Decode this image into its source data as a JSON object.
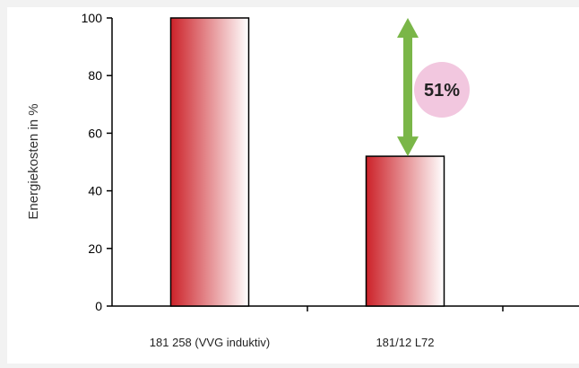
{
  "chart_data": {
    "type": "bar",
    "title": "",
    "xlabel": "",
    "ylabel": "Energiekosten in %",
    "ylim": [
      0,
      100
    ],
    "yticks": [
      0,
      20,
      40,
      60,
      80,
      100
    ],
    "grid": false,
    "categories": [
      "181 258 (VVG induktiv)",
      "181/12 L72"
    ],
    "values": [
      100,
      52
    ],
    "annotation": {
      "label": "51%",
      "from": 100,
      "to": 52,
      "between": "181/12 L72"
    }
  },
  "colors": {
    "background": "#f2f2f2",
    "plot_background": "#ffffff",
    "bar_gradient_start": "#cc2229",
    "bar_gradient_end": "#ffffff",
    "bar_outline": "#000000",
    "arrow": "#7ab648",
    "badge": "#f2c7df",
    "axis": "#000000"
  }
}
